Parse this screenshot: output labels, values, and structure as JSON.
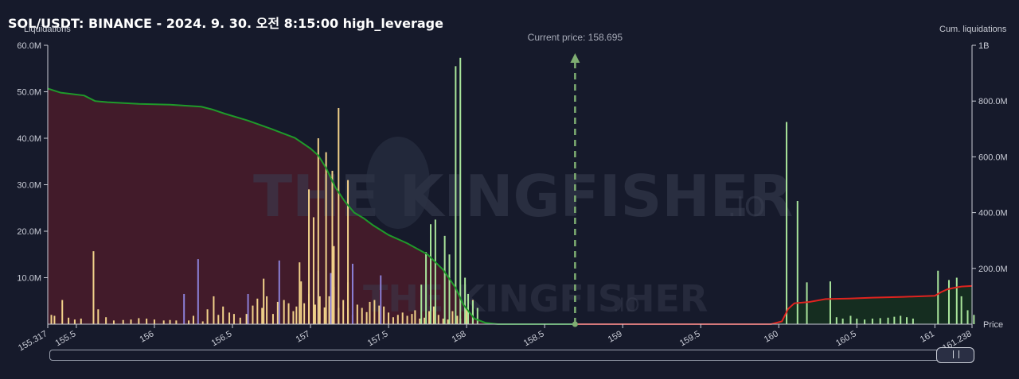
{
  "title": "SOL/USDT: BINANCE - 2024. 9. 30. 오전 8:15:00 high_leverage",
  "watermark": {
    "brand": "THE KINGFISHER",
    "suffix": ".IO"
  },
  "colors": {
    "background": "#161a2b",
    "long_cum_line": "#1f9a2a",
    "long_area": "#4a1c2a",
    "short_cum_line": "#e0231f",
    "short_area": "#15301f",
    "bar_yellow": "#f2d28a",
    "bar_purple": "#8b7fd6",
    "bar_green": "#a9e59b",
    "current_price_line": "#7fae72"
  },
  "chart_data": {
    "type": "bar",
    "title": "SOL/USDT: BINANCE - 2024. 9. 30. 오전 8:15:00 high_leverage",
    "ylabel": "Liquidations",
    "ylabel_right": "Cum. liquidations",
    "xlabel": "Price",
    "ylim": [
      0,
      60000000
    ],
    "ylim_right": [
      0,
      1000000000
    ],
    "xlim": [
      155.317,
      161.238
    ],
    "y_ticks": [
      "10.0M",
      "20.0M",
      "30.0M",
      "40.0M",
      "50.0M",
      "60.0M"
    ],
    "y_right_ticks": [
      "200.0M",
      "400.0M",
      "600.0M",
      "800.0M",
      "1B"
    ],
    "x_ticks": [
      "155.317",
      "155.5",
      "156",
      "156.5",
      "157",
      "157.5",
      "158",
      "158.5",
      "159",
      "159.5",
      "160",
      "160.5",
      "161",
      "161.238"
    ],
    "current_price": {
      "label": "Current price: 158.695",
      "value": 158.695
    },
    "grid": false,
    "long_liquidation_bars": [
      [
        155.34,
        2.0,
        "y"
      ],
      [
        155.36,
        1.8,
        "y"
      ],
      [
        155.41,
        5.2,
        "y"
      ],
      [
        155.45,
        1.4,
        "y"
      ],
      [
        155.49,
        1.0,
        "y"
      ],
      [
        155.53,
        1.2,
        "y"
      ],
      [
        155.61,
        15.7,
        "y"
      ],
      [
        155.64,
        3.2,
        "y"
      ],
      [
        155.69,
        1.5,
        "y"
      ],
      [
        155.74,
        0.8,
        "y"
      ],
      [
        155.8,
        0.9,
        "y"
      ],
      [
        155.85,
        1.0,
        "y"
      ],
      [
        155.9,
        1.3,
        "y"
      ],
      [
        155.95,
        1.2,
        "y"
      ],
      [
        156.0,
        1.0,
        "y"
      ],
      [
        156.06,
        0.8,
        "y"
      ],
      [
        156.1,
        0.9,
        "y"
      ],
      [
        156.14,
        0.8,
        "y"
      ],
      [
        156.19,
        6.5,
        "p"
      ],
      [
        156.22,
        0.8,
        "y"
      ],
      [
        156.25,
        1.8,
        "y"
      ],
      [
        156.28,
        14.0,
        "p"
      ],
      [
        156.31,
        0.6,
        "y"
      ],
      [
        156.34,
        3.2,
        "y"
      ],
      [
        156.38,
        6.0,
        "y"
      ],
      [
        156.41,
        2.0,
        "y"
      ],
      [
        156.44,
        3.8,
        "y"
      ],
      [
        156.48,
        2.5,
        "y"
      ],
      [
        156.51,
        2.2,
        "y"
      ],
      [
        156.55,
        1.4,
        "y"
      ],
      [
        156.59,
        2.2,
        "y"
      ],
      [
        156.63,
        4.0,
        "y"
      ],
      [
        156.66,
        5.5,
        "y"
      ],
      [
        156.69,
        3.5,
        "y"
      ],
      [
        156.72,
        6.0,
        "y"
      ],
      [
        156.76,
        2.2,
        "y"
      ],
      [
        156.79,
        4.8,
        "y"
      ],
      [
        156.83,
        5.2,
        "y"
      ],
      [
        156.86,
        4.5,
        "y"
      ],
      [
        156.89,
        2.8,
        "y"
      ],
      [
        156.91,
        3.8,
        "y"
      ],
      [
        156.94,
        9.2,
        "y"
      ],
      [
        156.96,
        4.5,
        "y"
      ],
      [
        156.99,
        6.5,
        "y"
      ],
      [
        157.03,
        4.2,
        "y"
      ],
      [
        157.06,
        6.0,
        "y"
      ],
      [
        157.09,
        3.6,
        "y"
      ],
      [
        157.12,
        6.0,
        "y"
      ],
      [
        157.15,
        8.0,
        "y"
      ],
      [
        157.18,
        3.5,
        "y"
      ],
      [
        157.21,
        5.2,
        "y"
      ],
      [
        157.24,
        3.4,
        "y"
      ],
      [
        157.27,
        2.0,
        "y"
      ],
      [
        157.3,
        4.2,
        "y"
      ],
      [
        157.33,
        3.5,
        "y"
      ],
      [
        157.36,
        2.6,
        "y"
      ],
      [
        157.38,
        4.8,
        "y"
      ],
      [
        157.41,
        5.2,
        "y"
      ],
      [
        157.44,
        4.0,
        "y"
      ],
      [
        157.47,
        3.8,
        "y"
      ],
      [
        157.5,
        2.5,
        "y"
      ],
      [
        157.53,
        1.5,
        "y"
      ],
      [
        157.56,
        2.0,
        "y"
      ],
      [
        157.59,
        2.5,
        "y"
      ],
      [
        157.62,
        1.8,
        "y"
      ],
      [
        157.65,
        2.2,
        "y"
      ],
      [
        157.67,
        3.0,
        "y"
      ],
      [
        157.7,
        1.2,
        "y"
      ],
      [
        157.73,
        1.4,
        "y"
      ],
      [
        157.76,
        2.8,
        "y"
      ],
      [
        157.79,
        3.8,
        "y"
      ],
      [
        157.82,
        2.0,
        "y"
      ],
      [
        157.85,
        1.2,
        "y"
      ],
      [
        157.88,
        1.0,
        "y"
      ],
      [
        157.91,
        2.8,
        "y"
      ],
      [
        157.94,
        1.8,
        "y"
      ],
      [
        157.96,
        1.2,
        "y"
      ],
      [
        158.0,
        3.4,
        "y"
      ],
      [
        158.04,
        5.2,
        "y"
      ],
      [
        156.6,
        6.5,
        "p"
      ],
      [
        156.8,
        13.7,
        "p"
      ],
      [
        157.05,
        11.5,
        "p"
      ],
      [
        157.13,
        11.0,
        "p"
      ],
      [
        157.45,
        10.5,
        "p"
      ],
      [
        156.7,
        9.8,
        "y"
      ],
      [
        156.93,
        13.3,
        "y"
      ],
      [
        157.24,
        9.0,
        "y"
      ],
      [
        157.27,
        13.0,
        "p"
      ],
      [
        156.99,
        29.0,
        "y"
      ],
      [
        157.02,
        23.0,
        "y"
      ],
      [
        157.05,
        40.0,
        "y"
      ],
      [
        157.1,
        37.0,
        "y"
      ],
      [
        157.14,
        33.0,
        "y"
      ],
      [
        157.18,
        46.5,
        "y"
      ],
      [
        157.24,
        31.0,
        "y"
      ],
      [
        157.15,
        16.8,
        "y"
      ],
      [
        157.71,
        8.5,
        "g"
      ],
      [
        157.74,
        15.5,
        "g"
      ],
      [
        157.77,
        21.5,
        "g"
      ],
      [
        157.8,
        22.5,
        "g"
      ],
      [
        157.86,
        19.0,
        "g"
      ],
      [
        157.89,
        15.0,
        "g"
      ],
      [
        157.93,
        55.5,
        "g"
      ],
      [
        157.96,
        57.3,
        "g"
      ],
      [
        157.99,
        10.0,
        "g"
      ],
      [
        158.01,
        6.5,
        "g"
      ],
      [
        158.04,
        5.0,
        "g"
      ],
      [
        158.07,
        3.5,
        "g"
      ]
    ],
    "short_liquidation_bars": [
      [
        160.05,
        43.5
      ],
      [
        160.12,
        26.5
      ],
      [
        160.18,
        9.0
      ],
      [
        160.33,
        9.2
      ],
      [
        160.37,
        1.5
      ],
      [
        160.41,
        1.2
      ],
      [
        160.46,
        1.8
      ],
      [
        160.5,
        1.2
      ],
      [
        160.55,
        1.0
      ],
      [
        160.6,
        1.2
      ],
      [
        160.65,
        1.3
      ],
      [
        160.7,
        1.4
      ],
      [
        160.74,
        1.6
      ],
      [
        160.78,
        1.8
      ],
      [
        160.82,
        1.5
      ],
      [
        160.86,
        1.2
      ],
      [
        161.02,
        11.5
      ],
      [
        161.09,
        9.5
      ],
      [
        161.14,
        10.0
      ],
      [
        161.17,
        6.0
      ],
      [
        161.21,
        3.0
      ],
      [
        161.25,
        2.0
      ]
    ],
    "cumulative_long": [
      [
        155.317,
        845
      ],
      [
        155.4,
        830
      ],
      [
        155.55,
        820
      ],
      [
        155.62,
        800
      ],
      [
        155.7,
        796
      ],
      [
        155.9,
        790
      ],
      [
        156.1,
        787
      ],
      [
        156.3,
        780
      ],
      [
        156.37,
        770
      ],
      [
        156.45,
        755
      ],
      [
        156.6,
        730
      ],
      [
        156.75,
        700
      ],
      [
        156.9,
        668
      ],
      [
        157.0,
        630
      ],
      [
        157.05,
        605
      ],
      [
        157.1,
        560
      ],
      [
        157.16,
        490
      ],
      [
        157.22,
        440
      ],
      [
        157.28,
        400
      ],
      [
        157.34,
        380
      ],
      [
        157.4,
        355
      ],
      [
        157.5,
        320
      ],
      [
        157.62,
        290
      ],
      [
        157.75,
        250
      ],
      [
        157.85,
        195
      ],
      [
        157.93,
        130
      ],
      [
        157.98,
        70
      ],
      [
        158.05,
        20
      ],
      [
        158.12,
        5
      ],
      [
        158.2,
        0
      ],
      [
        158.695,
        0
      ]
    ],
    "cumulative_short": [
      [
        158.695,
        0
      ],
      [
        159.95,
        0
      ],
      [
        160.02,
        10
      ],
      [
        160.06,
        55
      ],
      [
        160.1,
        75
      ],
      [
        160.2,
        80
      ],
      [
        160.3,
        90
      ],
      [
        160.45,
        92
      ],
      [
        160.6,
        95
      ],
      [
        160.8,
        98
      ],
      [
        161.0,
        102
      ],
      [
        161.04,
        115
      ],
      [
        161.08,
        125
      ],
      [
        161.12,
        130
      ],
      [
        161.17,
        135
      ],
      [
        161.238,
        137
      ]
    ]
  }
}
